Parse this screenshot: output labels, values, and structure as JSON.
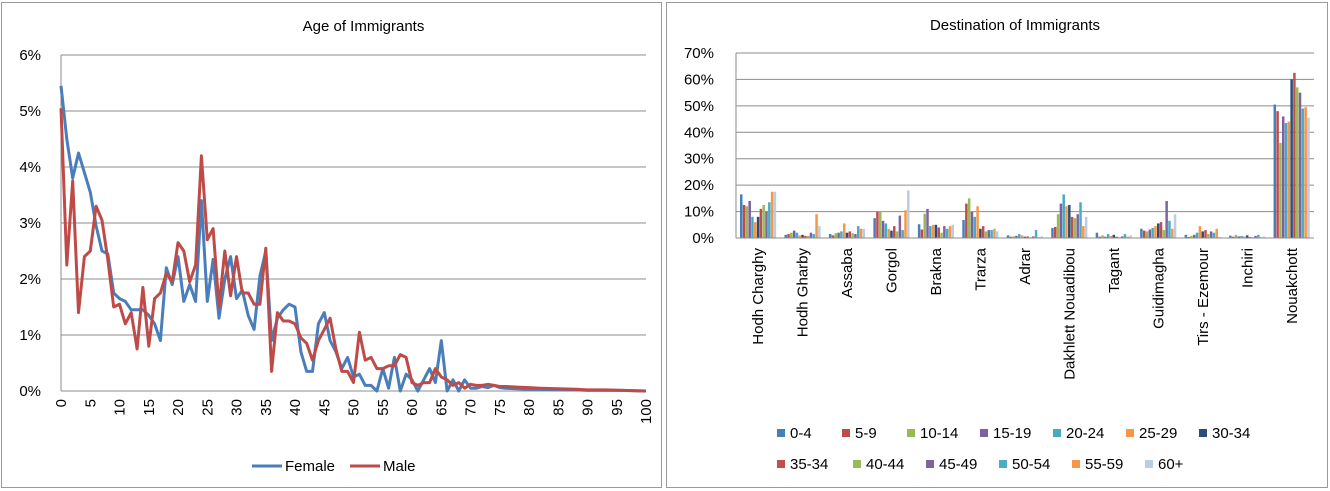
{
  "chart_data": [
    {
      "type": "line",
      "title": "Age of Immigrants",
      "xlabel": "",
      "ylabel": "",
      "xlim": [
        0,
        100
      ],
      "ylim": [
        0,
        6
      ],
      "x_ticks": [
        "0",
        "5",
        "10",
        "15",
        "20",
        "25",
        "30",
        "35",
        "40",
        "45",
        "50",
        "55",
        "60",
        "65",
        "70",
        "75",
        "80",
        "85",
        "90",
        "95",
        "100"
      ],
      "y_ticks": [
        "0%",
        "1%",
        "2%",
        "3%",
        "4%",
        "5%",
        "6%"
      ],
      "grid": "horizontal",
      "legend_position": "bottom",
      "series": [
        {
          "name": "Female",
          "color": "#4a7ebb",
          "points": [
            [
              0,
              5.45
            ],
            [
              1,
              4.5
            ],
            [
              2,
              3.8
            ],
            [
              3,
              4.25
            ],
            [
              4,
              3.9
            ],
            [
              5,
              3.55
            ],
            [
              6,
              2.95
            ],
            [
              7,
              2.5
            ],
            [
              8,
              2.45
            ],
            [
              9,
              1.75
            ],
            [
              10,
              1.65
            ],
            [
              11,
              1.6
            ],
            [
              12,
              1.45
            ],
            [
              13,
              1.45
            ],
            [
              14,
              1.45
            ],
            [
              15,
              1.35
            ],
            [
              16,
              1.2
            ],
            [
              17,
              0.9
            ],
            [
              18,
              2.2
            ],
            [
              19,
              1.9
            ],
            [
              20,
              2.4
            ],
            [
              21,
              1.6
            ],
            [
              22,
              1.9
            ],
            [
              23,
              1.6
            ],
            [
              24,
              3.4
            ],
            [
              25,
              1.6
            ],
            [
              26,
              2.35
            ],
            [
              27,
              1.3
            ],
            [
              28,
              2.0
            ],
            [
              29,
              2.4
            ],
            [
              30,
              1.65
            ],
            [
              31,
              1.8
            ],
            [
              32,
              1.35
            ],
            [
              33,
              1.1
            ],
            [
              34,
              2.05
            ],
            [
              35,
              2.5
            ],
            [
              36,
              0.9
            ],
            [
              37,
              1.3
            ],
            [
              38,
              1.45
            ],
            [
              39,
              1.55
            ],
            [
              40,
              1.5
            ],
            [
              41,
              0.7
            ],
            [
              42,
              0.35
            ],
            [
              43,
              0.35
            ],
            [
              44,
              1.2
            ],
            [
              45,
              1.4
            ],
            [
              46,
              0.9
            ],
            [
              47,
              0.7
            ],
            [
              48,
              0.4
            ],
            [
              49,
              0.6
            ],
            [
              50,
              0.25
            ],
            [
              51,
              0.3
            ],
            [
              52,
              0.1
            ],
            [
              53,
              0.1
            ],
            [
              54,
              0.0
            ],
            [
              55,
              0.4
            ],
            [
              56,
              0.05
            ],
            [
              57,
              0.6
            ],
            [
              58,
              0.0
            ],
            [
              59,
              0.3
            ],
            [
              60,
              0.2
            ],
            [
              61,
              0.0
            ],
            [
              62,
              0.2
            ],
            [
              63,
              0.4
            ],
            [
              64,
              0.15
            ],
            [
              65,
              0.9
            ],
            [
              66,
              0.0
            ],
            [
              67,
              0.2
            ],
            [
              68,
              0.0
            ],
            [
              69,
              0.2
            ],
            [
              70,
              0.05
            ],
            [
              71,
              0.05
            ],
            [
              72,
              0.08
            ],
            [
              73,
              0.06
            ],
            [
              74,
              0.1
            ],
            [
              75,
              0.06
            ],
            [
              76,
              0.05
            ],
            [
              78,
              0.04
            ],
            [
              80,
              0.03
            ],
            [
              82,
              0.03
            ],
            [
              85,
              0.02
            ],
            [
              88,
              0.02
            ],
            [
              90,
              0.01
            ],
            [
              93,
              0.01
            ],
            [
              96,
              0.01
            ],
            [
              100,
              0.0
            ]
          ]
        },
        {
          "name": "Male",
          "color": "#be4b48",
          "points": [
            [
              0,
              5.05
            ],
            [
              1,
              2.25
            ],
            [
              2,
              3.75
            ],
            [
              3,
              1.4
            ],
            [
              4,
              2.4
            ],
            [
              5,
              2.5
            ],
            [
              6,
              3.3
            ],
            [
              7,
              3.05
            ],
            [
              8,
              2.35
            ],
            [
              9,
              1.5
            ],
            [
              10,
              1.55
            ],
            [
              11,
              1.2
            ],
            [
              12,
              1.4
            ],
            [
              13,
              0.75
            ],
            [
              14,
              1.85
            ],
            [
              15,
              0.8
            ],
            [
              16,
              1.65
            ],
            [
              17,
              1.75
            ],
            [
              18,
              2.1
            ],
            [
              19,
              1.95
            ],
            [
              20,
              2.65
            ],
            [
              21,
              2.5
            ],
            [
              22,
              1.95
            ],
            [
              23,
              2.25
            ],
            [
              24,
              4.2
            ],
            [
              25,
              2.7
            ],
            [
              26,
              2.9
            ],
            [
              27,
              1.5
            ],
            [
              28,
              2.5
            ],
            [
              29,
              1.7
            ],
            [
              30,
              2.4
            ],
            [
              31,
              1.75
            ],
            [
              32,
              1.75
            ],
            [
              33,
              1.55
            ],
            [
              34,
              1.55
            ],
            [
              35,
              2.55
            ],
            [
              36,
              0.35
            ],
            [
              37,
              1.4
            ],
            [
              38,
              1.25
            ],
            [
              39,
              1.25
            ],
            [
              40,
              1.2
            ],
            [
              41,
              0.95
            ],
            [
              42,
              0.85
            ],
            [
              43,
              0.55
            ],
            [
              44,
              0.9
            ],
            [
              45,
              1.1
            ],
            [
              46,
              1.3
            ],
            [
              47,
              0.75
            ],
            [
              48,
              0.35
            ],
            [
              49,
              0.35
            ],
            [
              50,
              0.15
            ],
            [
              51,
              1.05
            ],
            [
              52,
              0.55
            ],
            [
              53,
              0.6
            ],
            [
              54,
              0.4
            ],
            [
              55,
              0.4
            ],
            [
              56,
              0.45
            ],
            [
              57,
              0.45
            ],
            [
              58,
              0.65
            ],
            [
              59,
              0.6
            ],
            [
              60,
              0.15
            ],
            [
              61,
              0.1
            ],
            [
              62,
              0.15
            ],
            [
              63,
              0.15
            ],
            [
              64,
              0.4
            ],
            [
              65,
              0.25
            ],
            [
              66,
              0.2
            ],
            [
              67,
              0.1
            ],
            [
              68,
              0.15
            ],
            [
              69,
              0.05
            ],
            [
              70,
              0.12
            ],
            [
              71,
              0.1
            ],
            [
              72,
              0.1
            ],
            [
              73,
              0.12
            ],
            [
              74,
              0.1
            ],
            [
              75,
              0.08
            ],
            [
              76,
              0.08
            ],
            [
              78,
              0.07
            ],
            [
              80,
              0.06
            ],
            [
              82,
              0.05
            ],
            [
              85,
              0.04
            ],
            [
              88,
              0.03
            ],
            [
              90,
              0.02
            ],
            [
              93,
              0.02
            ],
            [
              96,
              0.01
            ],
            [
              100,
              0.0
            ]
          ]
        }
      ]
    },
    {
      "type": "bar",
      "title": "Destination of Immigrants",
      "xlabel": "",
      "ylabel": "",
      "ylim": [
        0,
        70
      ],
      "y_ticks": [
        "0%",
        "10%",
        "20%",
        "30%",
        "40%",
        "50%",
        "60%",
        "70%"
      ],
      "grid": "horizontal",
      "legend_position": "bottom",
      "categories": [
        "Hodh Charghy",
        "Hodh Gharby",
        "Assaba",
        "Gorgol",
        "Brakna",
        "Trarza",
        "Adrar",
        "Dakhlett Nouadibou",
        "Tagant",
        "Guidimagha",
        "Tirs - Ezemour",
        "Inchiri",
        "Nouakchott"
      ],
      "series": [
        {
          "name": "0-4",
          "color": "#4a7ebb",
          "values": [
            16.5,
            1.2,
            1.5,
            7.5,
            5.2,
            6.8,
            1.0,
            3.8,
            2.0,
            3.5,
            1.2,
            0.9,
            50.5
          ]
        },
        {
          "name": "5-9",
          "color": "#be4b48",
          "values": [
            12.5,
            1.5,
            1.0,
            10.0,
            3.2,
            13.0,
            0.5,
            4.2,
            0.5,
            2.8,
            0.4,
            0.5,
            48.0
          ]
        },
        {
          "name": "10-14",
          "color": "#98b954",
          "values": [
            12.0,
            2.0,
            1.8,
            10.0,
            9.2,
            15.0,
            0.6,
            9.0,
            1.0,
            2.5,
            0.8,
            1.2,
            36.0
          ]
        },
        {
          "name": "15-19",
          "color": "#7d60a0",
          "values": [
            14.0,
            2.8,
            2.0,
            6.5,
            11.0,
            10.0,
            0.8,
            13.0,
            0.5,
            3.2,
            1.2,
            0.6,
            46.0
          ]
        },
        {
          "name": "20-24",
          "color": "#46aac5",
          "values": [
            8.0,
            2.0,
            2.5,
            5.5,
            4.5,
            8.0,
            1.5,
            16.5,
            1.5,
            3.8,
            2.0,
            0.8,
            43.5
          ]
        },
        {
          "name": "25-29",
          "color": "#f79646",
          "values": [
            6.0,
            1.0,
            5.5,
            3.5,
            5.0,
            12.0,
            1.0,
            12.0,
            0.8,
            4.5,
            4.5,
            0.6,
            44.0
          ]
        },
        {
          "name": "30-34",
          "color": "#2c4d75",
          "values": [
            8.0,
            1.2,
            2.0,
            2.8,
            5.0,
            3.5,
            0.5,
            12.5,
            1.2,
            5.5,
            2.5,
            1.0,
            60.0
          ]
        },
        {
          "name": "35-34",
          "color": "#c0504d",
          "values": [
            11.0,
            0.8,
            2.5,
            4.5,
            4.0,
            4.5,
            0.6,
            8.0,
            0.5,
            6.0,
            3.0,
            0.4,
            62.5
          ]
        },
        {
          "name": "40-44",
          "color": "#9bbb59",
          "values": [
            12.5,
            0.8,
            1.8,
            2.5,
            2.0,
            2.5,
            0.3,
            7.5,
            0.3,
            3.0,
            1.5,
            0.3,
            57.0
          ]
        },
        {
          "name": "45-49",
          "color": "#8064a2",
          "values": [
            10.0,
            2.0,
            1.5,
            8.5,
            4.5,
            3.0,
            0.6,
            9.0,
            0.6,
            14.0,
            2.5,
            0.8,
            55.0
          ]
        },
        {
          "name": "50-54",
          "color": "#4bacc6",
          "values": [
            13.5,
            1.5,
            4.5,
            3.0,
            3.5,
            3.0,
            3.0,
            13.5,
            1.5,
            6.5,
            2.0,
            1.2,
            49.0
          ]
        },
        {
          "name": "55-59",
          "color": "#f79646",
          "values": [
            17.5,
            9.0,
            3.5,
            10.5,
            4.5,
            3.5,
            0.3,
            4.5,
            0.5,
            3.5,
            3.5,
            0.3,
            49.5
          ]
        },
        {
          "name": "60+",
          "color": "#b9cde5",
          "values": [
            17.5,
            4.5,
            3.5,
            18.0,
            5.0,
            2.5,
            0.6,
            8.0,
            1.0,
            9.0,
            0.5,
            0.5,
            45.5
          ]
        }
      ]
    }
  ]
}
